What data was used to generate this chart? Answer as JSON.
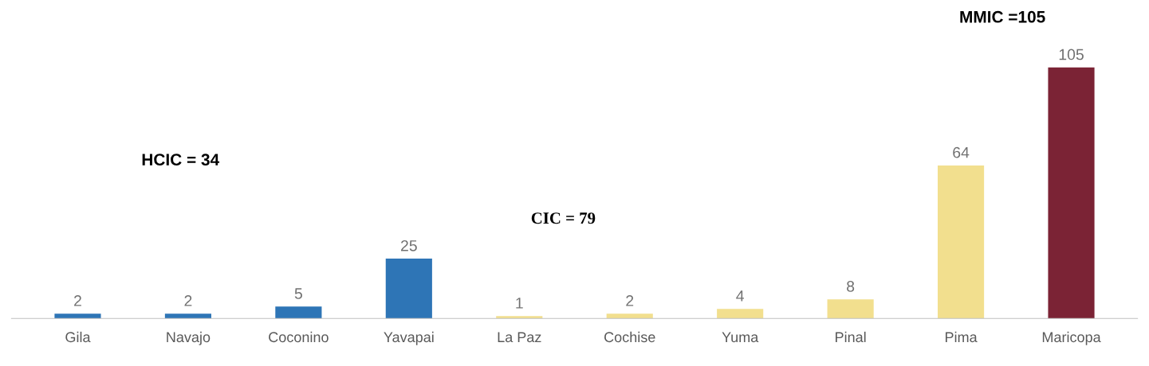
{
  "chart_data": {
    "type": "bar",
    "categories": [
      "Gila",
      "Navajo",
      "Coconino",
      "Yavapai",
      "La Paz",
      "Cochise",
      "Yuma",
      "Pinal",
      "Pima",
      "Maricopa"
    ],
    "values": [
      2,
      2,
      5,
      25,
      1,
      2,
      4,
      8,
      64,
      105
    ],
    "colors": [
      "#2e75b6",
      "#2e75b6",
      "#2e75b6",
      "#2e75b6",
      "#f2df8e",
      "#f2df8e",
      "#f2df8e",
      "#f2df8e",
      "#f2df8e",
      "#7b2335"
    ],
    "data_labels": true,
    "annotations": [
      "HCIC = 34",
      "CIC = 79",
      "MMIC =105"
    ]
  }
}
